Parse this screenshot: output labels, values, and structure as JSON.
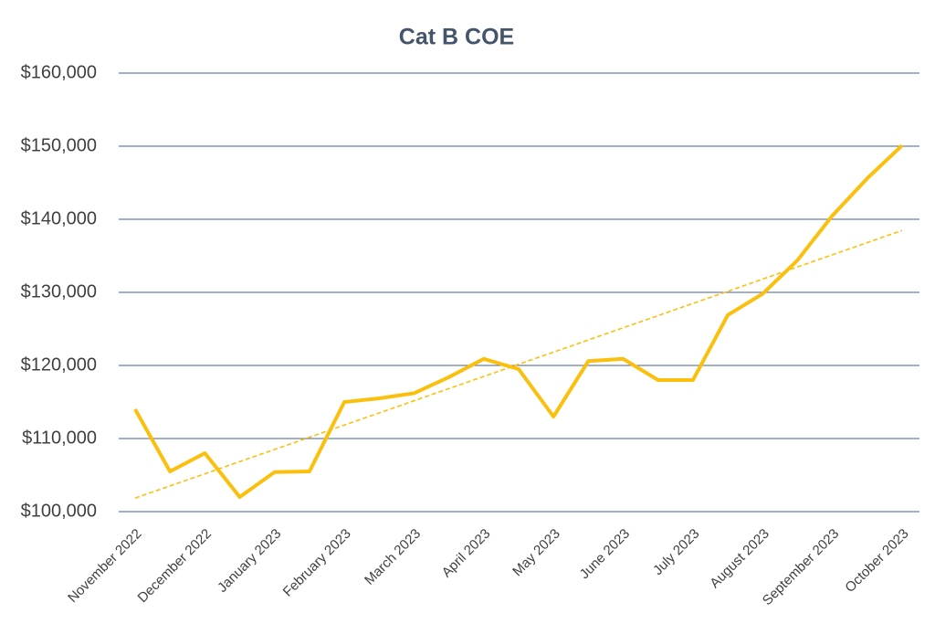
{
  "chart_data": {
    "type": "line",
    "title": "Cat B COE",
    "categories": [
      "November 2022",
      null,
      "December 2022",
      null,
      "January 2023",
      null,
      "February 2023",
      null,
      "March 2023",
      null,
      "April 2023",
      null,
      "May 2023",
      null,
      "June 2023",
      null,
      "July 2023",
      null,
      "August 2023",
      null,
      "September 2023",
      null,
      "October 2023"
    ],
    "series": [
      {
        "color": "#fbbf0e",
        "values": [
          114000,
          105500,
          108000,
          102000,
          105400,
          105500,
          115000,
          115500,
          116200,
          118400,
          120900,
          119500,
          113000,
          120600,
          120900,
          118000,
          118000,
          126900,
          129800,
          134400,
          140500,
          145600,
          150100
        ]
      }
    ],
    "ylim": [
      100000,
      160000
    ],
    "yticks": [
      {
        "value": 100000,
        "label": "$100,000"
      },
      {
        "value": 110000,
        "label": "$110,000"
      },
      {
        "value": 120000,
        "label": "$120,000"
      },
      {
        "value": 130000,
        "label": "$130,000"
      },
      {
        "value": 140000,
        "label": "$140,000"
      },
      {
        "value": 150000,
        "label": "$150,000"
      },
      {
        "value": 160000,
        "label": "$160,000"
      }
    ],
    "grid": true,
    "trendline": true
  }
}
